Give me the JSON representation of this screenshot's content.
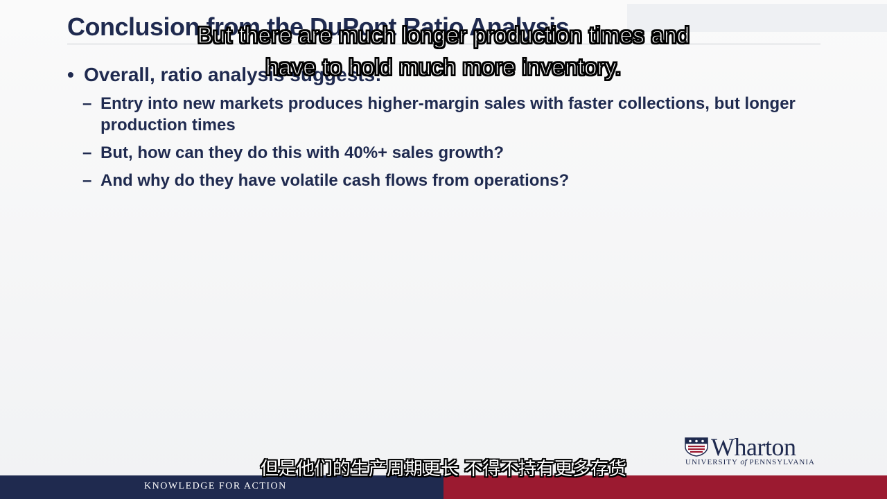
{
  "slide": {
    "title": "Conclusion from the DuPont Ratio Analysis",
    "bullet_marker": "•",
    "sub_marker": "–",
    "main_bullet": "Overall, ratio analysis suggests:",
    "sub_bullets": [
      "Entry into new markets produces higher-margin sales with faster collections, but longer production times",
      "But, how can they do this with 40%+ sales growth?",
      "And why do they have volatile cash flows from operations?"
    ]
  },
  "captions": {
    "english": "But there are much longer production times and have to hold much more inventory.",
    "chinese": "但是他们的生产周期更长 不得不持有更多存货"
  },
  "logo": {
    "wordmark": "Wharton",
    "subline_1": "UNIVERSITY",
    "subline_of": "of",
    "subline_2": "PENNSYLVANIA",
    "icon": "penn-shield-icon"
  },
  "footer": {
    "tagline": "KNOWLEDGE FOR ACTION",
    "left_color": "#1f2a4f",
    "right_color": "#9b1a30"
  },
  "colors": {
    "title_text": "#1f2a4f",
    "accent_red": "#9b1a30"
  }
}
